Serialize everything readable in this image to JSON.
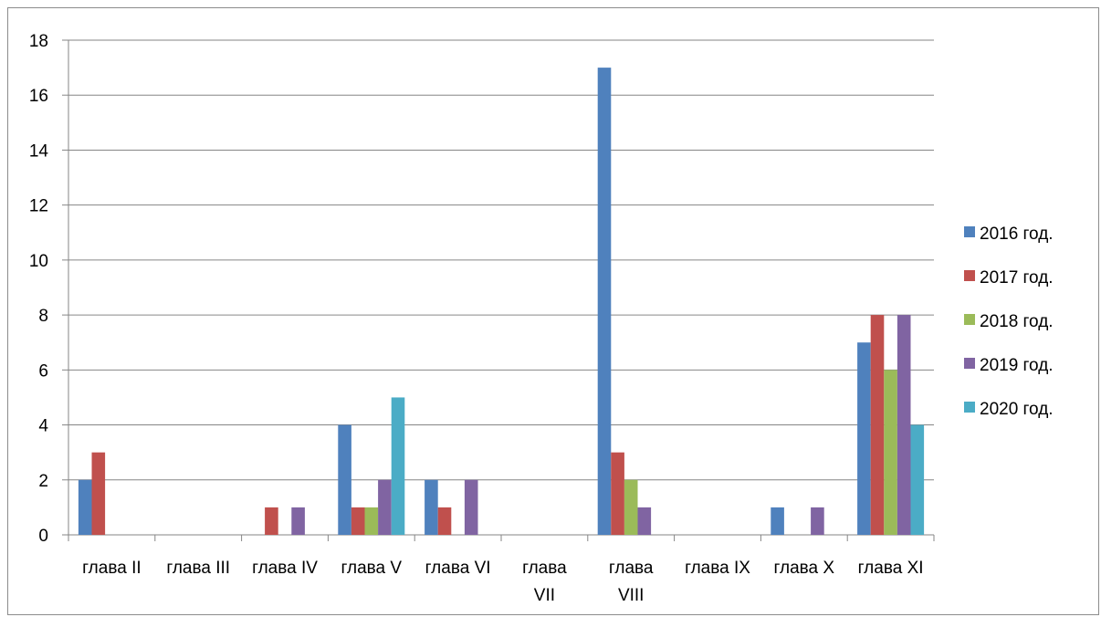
{
  "chart_data": {
    "type": "bar",
    "title": "",
    "xlabel": "",
    "ylabel": "",
    "ylim": [
      0,
      18
    ],
    "yticks": [
      0,
      2,
      4,
      6,
      8,
      10,
      12,
      14,
      16,
      18
    ],
    "grid": true,
    "legend_position": "right",
    "categories": [
      [
        "глава II"
      ],
      [
        "глава III"
      ],
      [
        "глава IV"
      ],
      [
        "глава V"
      ],
      [
        "глава VI"
      ],
      [
        "глава",
        "VII"
      ],
      [
        "глава",
        "VIII"
      ],
      [
        "глава IX"
      ],
      [
        "глава X"
      ],
      [
        "глава XI"
      ]
    ],
    "series": [
      {
        "name": "2016 год.",
        "color": "#4f81bd",
        "values": [
          2,
          0,
          0,
          4,
          2,
          0,
          17,
          0,
          1,
          7
        ]
      },
      {
        "name": "2017 год.",
        "color": "#c0504d",
        "values": [
          3,
          0,
          1,
          1,
          1,
          0,
          3,
          0,
          0,
          8
        ]
      },
      {
        "name": "2018 год.",
        "color": "#9bbb59",
        "values": [
          0,
          0,
          0,
          1,
          0,
          0,
          2,
          0,
          0,
          6
        ]
      },
      {
        "name": "2019 год.",
        "color": "#8064a2",
        "values": [
          0,
          0,
          1,
          2,
          2,
          0,
          1,
          0,
          1,
          8
        ]
      },
      {
        "name": "2020 год.",
        "color": "#4bacc6",
        "values": [
          0,
          0,
          0,
          5,
          0,
          0,
          0,
          0,
          0,
          4
        ]
      }
    ]
  }
}
